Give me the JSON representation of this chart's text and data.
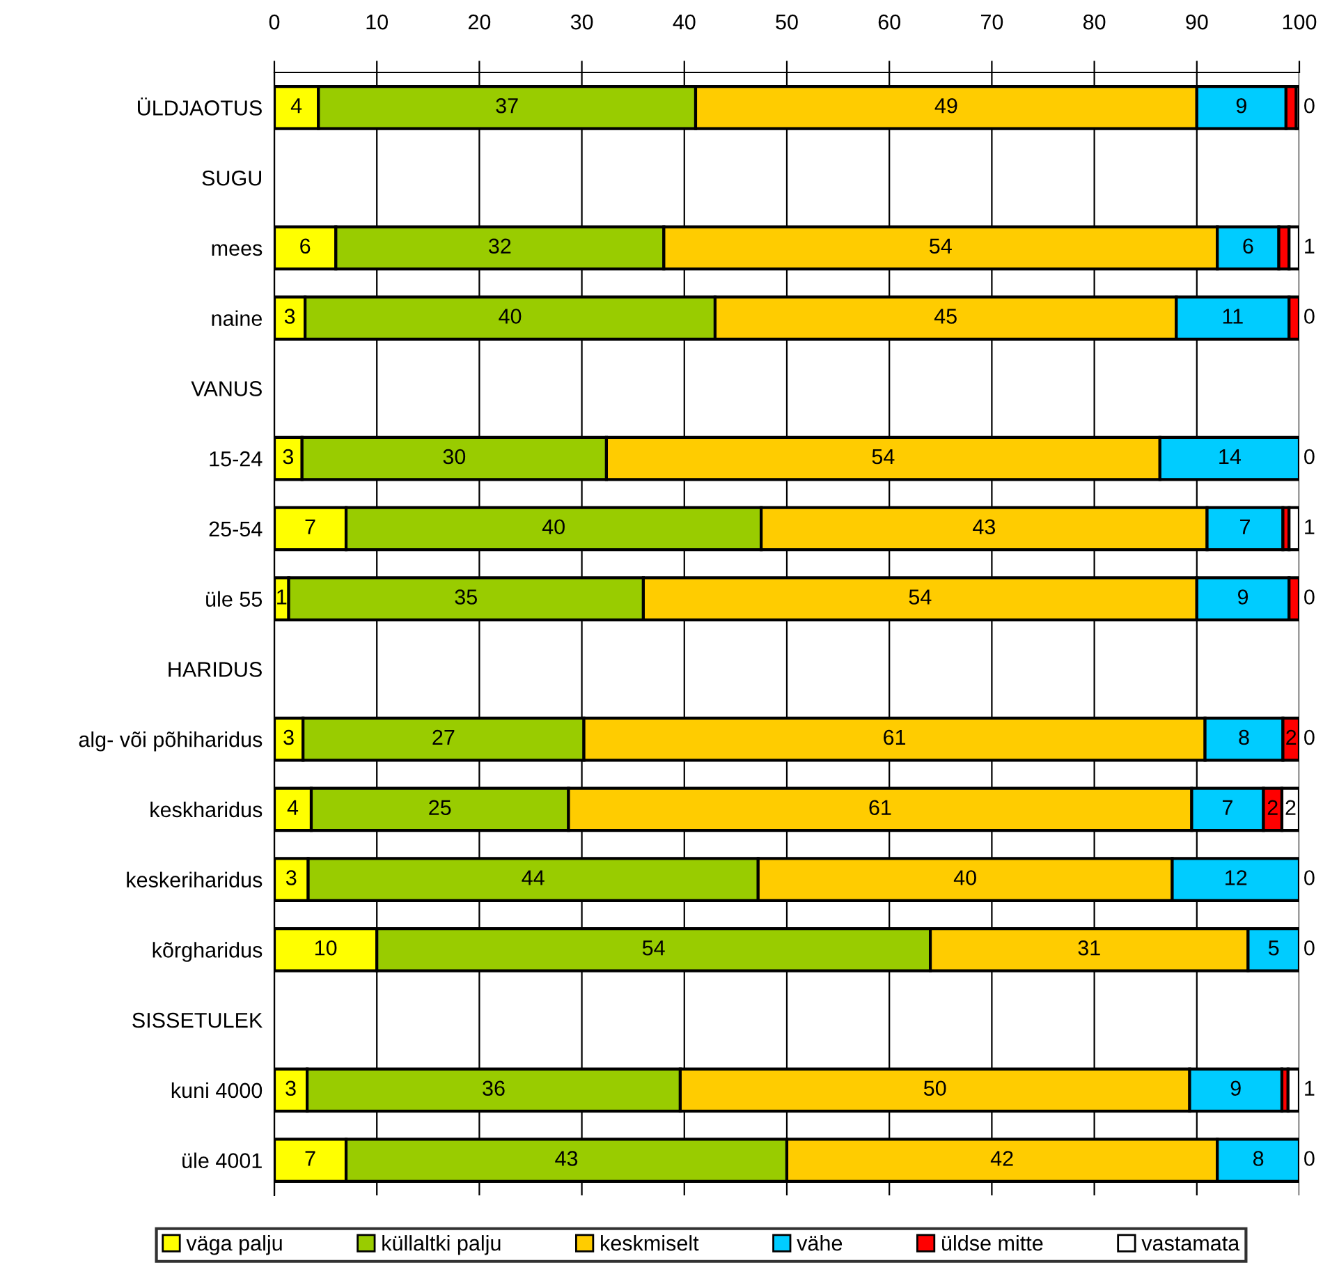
{
  "chart_data": {
    "type": "bar",
    "orientation": "horizontal",
    "stacked": true,
    "categories": [
      "ÜLDJAOTUS",
      "SUGU",
      "mees",
      "naine",
      "VANUS",
      "15-24",
      "25-54",
      "üle 55",
      "HARIDUS",
      "alg- või põhiharidus",
      "keskharidus",
      "keskeriharidus",
      "kõrgharidus",
      "SISSETULEK",
      "kuni 4000",
      "üle 4001"
    ],
    "xlim": [
      0,
      100
    ],
    "xticks": [
      0,
      10,
      20,
      30,
      40,
      50,
      60,
      70,
      80,
      90,
      100
    ],
    "grid": "x",
    "legend": "bottom",
    "series": [
      {
        "name": "väga palju",
        "color": "#ffff00",
        "values": [
          4.3,
          null,
          6,
          3,
          null,
          2.7,
          7,
          1.4,
          null,
          2.8,
          3.6,
          3.3,
          10,
          null,
          3.2,
          7
        ],
        "value_labels": [
          "4",
          null,
          "6",
          "3",
          null,
          "3",
          "7",
          "1",
          null,
          "3",
          "4",
          "3",
          "10",
          null,
          "3",
          "7"
        ]
      },
      {
        "name": "küllaltki palju",
        "color": "#99cc00",
        "values": [
          36.8,
          null,
          32,
          40,
          null,
          29.7,
          40.5,
          34.6,
          null,
          27.4,
          25.1,
          43.9,
          54,
          null,
          36.4,
          43
        ],
        "value_labels": [
          "37",
          null,
          "32",
          "40",
          null,
          "30",
          "40",
          "35",
          null,
          "27",
          "25",
          "44",
          "54",
          null,
          "36",
          "43"
        ]
      },
      {
        "name": "keskmiselt",
        "color": "#ffcc00",
        "values": [
          48.9,
          null,
          54,
          45,
          null,
          54,
          43.5,
          54,
          null,
          60.6,
          60.8,
          40.4,
          31,
          null,
          49.7,
          42
        ],
        "value_labels": [
          "49",
          null,
          "54",
          "45",
          null,
          "54",
          "43",
          "54",
          null,
          "61",
          "61",
          "40",
          "31",
          null,
          "50",
          "42"
        ]
      },
      {
        "name": "vähe",
        "color": "#00ccff",
        "values": [
          8.7,
          null,
          6,
          11,
          null,
          13.6,
          7.4,
          9,
          null,
          7.6,
          7.0,
          12.4,
          5,
          null,
          9.0,
          8
        ],
        "value_labels": [
          "9",
          null,
          "6",
          "11",
          null,
          "14",
          "7",
          "9",
          null,
          "8",
          "7",
          "12",
          "5",
          null,
          "9",
          "8"
        ]
      },
      {
        "name": "üldse mitte",
        "color": "#ff0000",
        "values": [
          1.0,
          null,
          1,
          1,
          null,
          0,
          0.6,
          1,
          null,
          1.6,
          1.8,
          0,
          0,
          null,
          0.6,
          0
        ],
        "value_labels": [
          null,
          null,
          null,
          null,
          null,
          null,
          null,
          null,
          null,
          "2",
          "2",
          null,
          null,
          null,
          null,
          null
        ]
      },
      {
        "name": "vastamata",
        "color": "#ffffff",
        "values": [
          0.3,
          null,
          1,
          0,
          null,
          0,
          1.0,
          0,
          null,
          0,
          1.7,
          0,
          0,
          null,
          1.1,
          0
        ],
        "value_labels": [
          "0",
          null,
          "1",
          "0",
          null,
          "0",
          "1",
          "0",
          null,
          "0",
          "2",
          "0",
          "0",
          null,
          "1",
          "0"
        ]
      }
    ]
  }
}
